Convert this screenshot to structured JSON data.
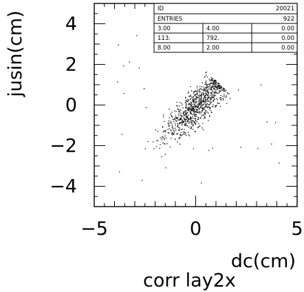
{
  "chart_data": {
    "type": "scatter",
    "title": "corr lay2x",
    "xlabel": "dc(cm)",
    "ylabel": "jusin(cm)",
    "xlim": [
      -5,
      5
    ],
    "ylim": [
      -5,
      5
    ],
    "xticks": [
      -5,
      0,
      5
    ],
    "yticks": [
      -4,
      -2,
      0,
      2,
      4
    ],
    "grid": false,
    "stats": {
      "id_label": "ID",
      "id_value": "20021",
      "entries_label": "ENTRIES",
      "entries_value": "922",
      "rows": [
        [
          "3.00",
          "4.00",
          "0.00"
        ],
        [
          "113.",
          "792.",
          "0.00"
        ],
        [
          "8.00",
          "2.00",
          "0.00"
        ]
      ]
    },
    "distribution": {
      "n_points": 922,
      "mean_x": 0.1,
      "mean_y": 0.0,
      "slope": 1.05,
      "spread_along": 1.15,
      "spread_across": 0.35
    }
  }
}
